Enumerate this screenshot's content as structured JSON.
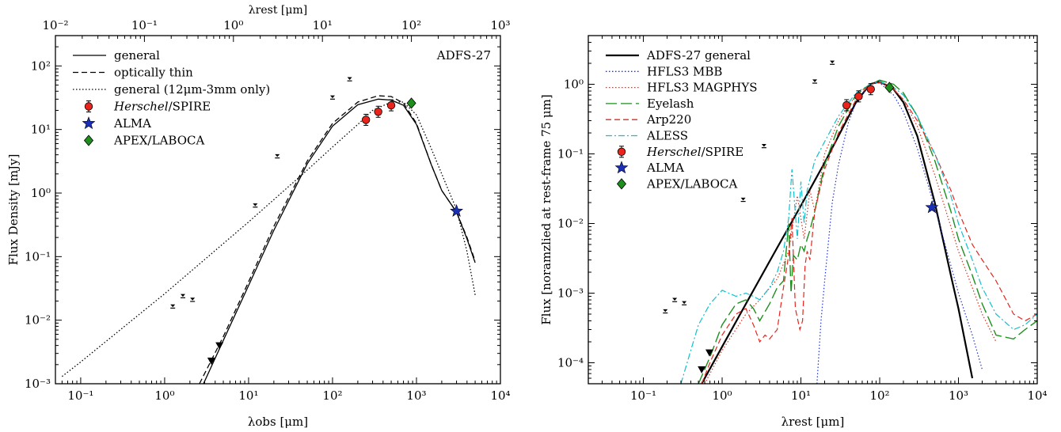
{
  "chart_data": [
    {
      "type": "scatter",
      "panel": "left",
      "annotation": "ADFS-27",
      "xlabel": "λobs [μm]",
      "ylabel": "Flux Density [mJy]",
      "top_xlabel": "λrest [μm]",
      "xscale": "log",
      "yscale": "log",
      "xlim": [
        0.05,
        10000
      ],
      "ylim": [
        0.001,
        300
      ],
      "top_xlim": [
        0.01,
        1000
      ],
      "x_tick_labels": [
        "10⁻¹",
        "10⁰",
        "10¹",
        "10²",
        "10³",
        "10⁴"
      ],
      "y_tick_labels": [
        "10⁻³",
        "10⁻²",
        "10⁻¹",
        "10⁰",
        "10¹",
        "10²"
      ],
      "top_tick_labels": [
        "10⁻²",
        "10⁻¹",
        "10⁰",
        "10¹",
        "10²",
        "10³"
      ],
      "legend_position": "top-left",
      "legend": [
        {
          "label": "general",
          "style": "solid"
        },
        {
          "label": "optically thin",
          "style": "dashed"
        },
        {
          "label": "general (12μm-3mm only)",
          "style": "dotted"
        },
        {
          "label": "Herschel/SPIRE",
          "marker": "circle",
          "color": "#e8241c"
        },
        {
          "label": "ALMA",
          "marker": "star",
          "color": "#1a2fb8"
        },
        {
          "label": "APEX/LABOCA",
          "marker": "diamond",
          "color": "#1e8f1e"
        }
      ],
      "series": [
        {
          "name": "general",
          "style": "solid",
          "color": "#000000",
          "x": [
            2.9,
            5,
            10,
            20,
            50,
            100,
            200,
            350,
            500,
            700,
            1000,
            1500,
            2000,
            3000,
            4000,
            5000
          ],
          "y": [
            0.001,
            0.0048,
            0.035,
            0.26,
            2.9,
            11.3,
            24.5,
            30,
            29,
            24,
            12,
            2.8,
            1.1,
            0.5,
            0.19,
            0.08
          ]
        },
        {
          "name": "optically thin",
          "style": "dashed",
          "color": "#000000",
          "x": [
            2.6,
            5,
            10,
            20,
            50,
            100,
            200,
            350,
            500,
            700,
            1000,
            1500,
            2000,
            3000,
            4000,
            5000
          ],
          "y": [
            0.001,
            0.0055,
            0.04,
            0.3,
            3.2,
            12.5,
            27,
            34,
            33,
            26,
            12.5,
            2.8,
            1.1,
            0.5,
            0.2,
            0.085
          ]
        },
        {
          "name": "general (12μm-3mm only)",
          "style": "dotted",
          "color": "#000000",
          "x": [
            0.06,
            0.1,
            1,
            10,
            50,
            100,
            200,
            300,
            500,
            700,
            1000,
            1500,
            2000,
            3000,
            4000,
            5000
          ],
          "y": [
            0.0013,
            0.0022,
            0.026,
            0.35,
            2.3,
            5.3,
            12,
            20,
            27,
            27,
            17,
            5,
            2,
            0.55,
            0.12,
            0.025
          ]
        }
      ],
      "points": [
        {
          "name": "Herschel/SPIRE",
          "marker": "circle",
          "color": "#e8241c",
          "x": [
            250,
            350,
            500
          ],
          "y": [
            14.2,
            19,
            24
          ]
        },
        {
          "name": "ALMA",
          "marker": "star",
          "color": "#1a2fb8",
          "x": [
            3000
          ],
          "y": [
            0.52
          ]
        },
        {
          "name": "APEX/LABOCA",
          "marker": "diamond",
          "color": "#1e8f1e",
          "x": [
            870
          ],
          "y": [
            26
          ]
        },
        {
          "name": "",
          "marker": "upper-limit",
          "color": "#000000",
          "x": [
            1.25,
            1.65,
            2.15,
            12,
            22,
            100,
            160
          ],
          "y": [
            0.0165,
            0.024,
            0.021,
            0.64,
            3.8,
            32,
            62
          ]
        },
        {
          "name": "",
          "marker": "down-triangle",
          "color": "#000000",
          "x": [
            3.6,
            4.5
          ],
          "y": [
            0.0023,
            0.004
          ]
        }
      ]
    },
    {
      "type": "line",
      "panel": "right",
      "xlabel": "λrest [μm]",
      "ylabel": "Flux [noramzlied at rest-frame 75 μm]",
      "xscale": "log",
      "yscale": "log",
      "xlim": [
        0.02,
        10000
      ],
      "ylim": [
        5e-05,
        5
      ],
      "x_tick_labels": [
        "10⁻¹",
        "10⁰",
        "10¹",
        "10²",
        "10³",
        "10⁴"
      ],
      "y_tick_labels": [
        "10⁻⁴",
        "10⁻³",
        "10⁻²",
        "10⁻¹",
        "10⁰"
      ],
      "legend_position": "top-left",
      "legend": [
        {
          "label": "ADFS-27 general",
          "style": "solid",
          "color": "#000000"
        },
        {
          "label": "HFLS3 MBB",
          "style": "dotted",
          "color": "#2233cc"
        },
        {
          "label": "HFLS3 MAGPHYS",
          "style": "dotted",
          "color": "#e03020"
        },
        {
          "label": "Eyelash",
          "style": "longdash",
          "color": "#1e8f1e"
        },
        {
          "label": "Arp220",
          "style": "dashed",
          "color": "#e8241c"
        },
        {
          "label": "ALESS",
          "style": "dashdot",
          "color": "#10c0d0"
        },
        {
          "label": "Herschel/SPIRE",
          "marker": "circle",
          "color": "#e8241c"
        },
        {
          "label": "ALMA",
          "marker": "star",
          "color": "#1a2fb8"
        },
        {
          "label": "APEX/LABOCA",
          "marker": "diamond",
          "color": "#1e8f1e"
        }
      ],
      "series": [
        {
          "name": "ADFS-27 general",
          "style": "solid",
          "color": "#000000",
          "width": 2.2,
          "x": [
            0.55,
            1,
            2,
            5,
            10,
            20,
            50,
            75,
            100,
            150,
            200,
            300,
            500,
            800,
            1000,
            1500
          ],
          "y": [
            5e-05,
            0.00017,
            0.0007,
            0.0045,
            0.018,
            0.075,
            0.55,
            1,
            1.1,
            0.85,
            0.55,
            0.18,
            0.02,
            0.0018,
            0.0006,
            6e-05
          ]
        },
        {
          "name": "HFLS3 MBB",
          "style": "dotted",
          "color": "#2233cc",
          "width": 1.2,
          "x": [
            16,
            18,
            20,
            25,
            30,
            40,
            50,
            75,
            100,
            150,
            200,
            300,
            500,
            800,
            1000,
            1500,
            2000
          ],
          "y": [
            5e-05,
            0.0004,
            0.0015,
            0.02,
            0.07,
            0.28,
            0.55,
            1,
            1.05,
            0.7,
            0.4,
            0.12,
            0.017,
            0.0025,
            0.001,
            0.00025,
            8e-05
          ]
        },
        {
          "name": "HFLS3 MAGPHYS",
          "style": "dotted",
          "color": "#e03020",
          "width": 1.2,
          "x": [
            0.6,
            1,
            2,
            3,
            5,
            7,
            9,
            11,
            13,
            15,
            20,
            30,
            50,
            75,
            100,
            150,
            200,
            300,
            500,
            800,
            1000,
            1500,
            2000,
            3000
          ],
          "y": [
            5e-05,
            0.00015,
            0.0005,
            0.0008,
            0.0016,
            0.004,
            0.025,
            0.006,
            0.03,
            0.015,
            0.1,
            0.3,
            0.7,
            1,
            1.1,
            0.85,
            0.6,
            0.25,
            0.05,
            0.009,
            0.004,
            0.0012,
            0.0005,
            0.0002
          ]
        },
        {
          "name": "Eyelash",
          "style": "longdash",
          "color": "#1e8f1e",
          "width": 1.4,
          "x": [
            0.5,
            0.7,
            1,
            1.5,
            2,
            2.5,
            3,
            4,
            5,
            6,
            7,
            7.5,
            8,
            9,
            10,
            11,
            12,
            13,
            15,
            20,
            30,
            50,
            75,
            100,
            150,
            200,
            300,
            500,
            800,
            1000,
            1500,
            2000,
            3000,
            5000,
            7000,
            10000
          ],
          "y": [
            5e-05,
            0.00012,
            0.00035,
            0.0007,
            0.0008,
            0.0006,
            0.0004,
            0.0007,
            0.0012,
            0.0015,
            0.01,
            0.001,
            0.0035,
            0.003,
            0.005,
            0.004,
            0.006,
            0.008,
            0.015,
            0.07,
            0.25,
            0.7,
            1,
            1.15,
            1,
            0.75,
            0.35,
            0.08,
            0.015,
            0.006,
            0.0018,
            0.0007,
            0.00025,
            0.00022,
            0.0003,
            0.0004
          ]
        },
        {
          "name": "Arp220",
          "style": "dashed",
          "color": "#e8241c",
          "width": 1.2,
          "x": [
            0.55,
            0.7,
            1,
            1.5,
            2,
            2.5,
            3,
            3.5,
            4,
            5,
            6,
            7,
            7.7,
            8.5,
            9.7,
            10.5,
            11.3,
            12,
            13,
            15,
            20,
            30,
            50,
            75,
            100,
            150,
            200,
            300,
            500,
            800,
            1000,
            1500,
            2000,
            3000,
            5000,
            7000,
            10000
          ],
          "y": [
            5e-05,
            0.0001,
            0.00025,
            0.0005,
            0.0006,
            0.00035,
            0.0002,
            0.00025,
            0.00022,
            0.0003,
            0.0012,
            0.0035,
            0.012,
            0.0006,
            0.0003,
            0.0004,
            0.0025,
            0.004,
            0.003,
            0.015,
            0.06,
            0.2,
            0.6,
            1,
            1.05,
            0.85,
            0.6,
            0.3,
            0.1,
            0.03,
            0.015,
            0.005,
            0.003,
            0.0015,
            0.0005,
            0.0004,
            0.0005
          ]
        },
        {
          "name": "ALESS",
          "style": "dashdot",
          "color": "#10c0d0",
          "width": 1.2,
          "x": [
            0.3,
            0.4,
            0.5,
            0.7,
            1,
            1.5,
            2,
            2.5,
            3,
            4,
            5,
            6,
            7,
            7.7,
            9,
            10,
            11,
            12,
            15,
            20,
            30,
            50,
            75,
            100,
            150,
            200,
            300,
            500,
            800,
            1000,
            1500,
            2000,
            3000,
            5000,
            7000,
            10000
          ],
          "y": [
            5e-05,
            0.00015,
            0.00035,
            0.0007,
            0.0011,
            0.0009,
            0.001,
            0.0009,
            0.0008,
            0.0012,
            0.002,
            0.004,
            0.012,
            0.06,
            0.006,
            0.04,
            0.01,
            0.03,
            0.08,
            0.15,
            0.35,
            0.75,
            1,
            1.1,
            0.9,
            0.7,
            0.35,
            0.1,
            0.025,
            0.01,
            0.003,
            0.0012,
            0.0005,
            0.0003,
            0.00035,
            0.0005
          ]
        }
      ],
      "points": [
        {
          "name": "Herschel/SPIRE",
          "marker": "circle",
          "color": "#e8241c",
          "x": [
            38,
            54,
            77
          ],
          "y": [
            0.5,
            0.67,
            0.85
          ]
        },
        {
          "name": "ALMA",
          "marker": "star",
          "color": "#1a2fb8",
          "x": [
            460
          ],
          "y": [
            0.017
          ]
        },
        {
          "name": "APEX/LABOCA",
          "marker": "diamond",
          "color": "#1e8f1e",
          "x": [
            133
          ],
          "y": [
            0.9
          ]
        },
        {
          "name": "",
          "marker": "upper-limit",
          "color": "#000000",
          "x": [
            0.19,
            0.25,
            0.33,
            1.85,
            3.4,
            15,
            25
          ],
          "y": [
            0.00055,
            0.0008,
            0.00072,
            0.022,
            0.13,
            1.1,
            2.05
          ]
        },
        {
          "name": "",
          "marker": "down-triangle",
          "color": "#000000",
          "x": [
            0.55,
            0.69
          ],
          "y": [
            8e-05,
            0.00014
          ]
        }
      ]
    }
  ]
}
